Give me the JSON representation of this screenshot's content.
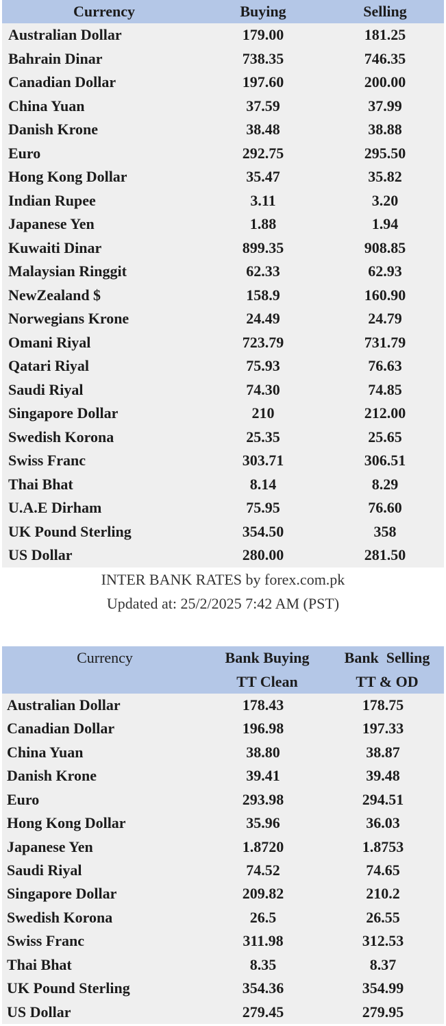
{
  "rates_table": {
    "header": [
      "Currency",
      "Buying",
      "Selling"
    ],
    "rows": [
      [
        "Australian Dollar",
        "179.00",
        "181.25"
      ],
      [
        "Bahrain Dinar",
        "738.35",
        "746.35"
      ],
      [
        "Canadian Dollar",
        "197.60",
        "200.00"
      ],
      [
        "China Yuan",
        "37.59",
        "37.99"
      ],
      [
        "Danish Krone",
        "38.48",
        "38.88"
      ],
      [
        "Euro",
        "292.75",
        "295.50"
      ],
      [
        "Hong Kong Dollar",
        "35.47",
        "35.82"
      ],
      [
        "Indian Rupee",
        "3.11",
        "3.20"
      ],
      [
        "Japanese Yen",
        "1.88",
        "1.94"
      ],
      [
        "Kuwaiti Dinar",
        "899.35",
        "908.85"
      ],
      [
        "Malaysian Ringgit",
        "62.33",
        "62.93"
      ],
      [
        "NewZealand $",
        "158.9",
        "160.90"
      ],
      [
        "Norwegians Krone",
        "24.49",
        "24.79"
      ],
      [
        "Omani Riyal",
        "723.79",
        "731.79"
      ],
      [
        "Qatari Riyal",
        "75.93",
        "76.63"
      ],
      [
        "Saudi Riyal",
        "74.30",
        "74.85"
      ],
      [
        "Singapore Dollar",
        "210",
        "212.00"
      ],
      [
        "Swedish Korona",
        "25.35",
        "25.65"
      ],
      [
        "Swiss Franc",
        "303.71",
        "306.51"
      ],
      [
        "Thai Bhat",
        "8.14",
        "8.29"
      ],
      [
        "U.A.E Dirham",
        "75.95",
        "76.60"
      ],
      [
        "UK Pound Sterling",
        "354.50",
        "358"
      ],
      [
        "US Dollar",
        "280.00",
        "281.50"
      ]
    ]
  },
  "caption": [
    "INTER BANK RATES by forex.com.pk",
    "Updated at: 25/2/2025 7:42 AM (PST)"
  ],
  "bank_table": {
    "header": [
      [
        "Currency"
      ],
      [
        "Bank Buying",
        "TT Clean"
      ],
      [
        "Bank  Selling",
        "TT & OD"
      ]
    ],
    "rows": [
      [
        "Australian Dollar",
        "178.43",
        "178.75"
      ],
      [
        "Canadian Dollar",
        "196.98",
        "197.33"
      ],
      [
        "China Yuan",
        "38.80",
        "38.87"
      ],
      [
        "Danish Krone",
        "39.41",
        "39.48"
      ],
      [
        "Euro",
        "293.98",
        "294.51"
      ],
      [
        "Hong Kong Dollar",
        "35.96",
        "36.03"
      ],
      [
        "Japanese Yen",
        "1.8720",
        "1.8753"
      ],
      [
        "Saudi Riyal",
        "74.52",
        "74.65"
      ],
      [
        "Singapore Dollar",
        "209.82",
        "210.2"
      ],
      [
        "Swedish Korona",
        "26.5",
        "26.55"
      ],
      [
        "Swiss Franc",
        "311.98",
        "312.53"
      ],
      [
        "Thai Bhat",
        "8.35",
        "8.37"
      ],
      [
        "UK Pound Sterling",
        "354.36",
        "354.99"
      ],
      [
        "US Dollar",
        "279.45",
        "279.95"
      ]
    ]
  }
}
